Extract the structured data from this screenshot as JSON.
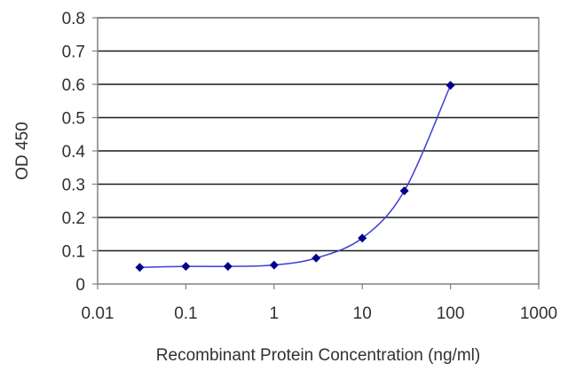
{
  "chart_data": {
    "type": "scatter",
    "title": "",
    "xlabel": "Recombinant Protein Concentration (ng/ml)",
    "ylabel": "OD 450",
    "x_scale": "log",
    "xlim": [
      0.01,
      1000
    ],
    "ylim": [
      0,
      0.8
    ],
    "x_ticks": [
      0.01,
      0.1,
      1,
      10,
      100,
      1000
    ],
    "x_tick_labels": [
      "0.01",
      "0.1",
      "1",
      "10",
      "100",
      "1000"
    ],
    "y_ticks": [
      0,
      0.1,
      0.2,
      0.3,
      0.4,
      0.5,
      0.6,
      0.7,
      0.8
    ],
    "y_tick_labels": [
      "0",
      "0.1",
      "0.2",
      "0.3",
      "0.4",
      "0.5",
      "0.6",
      "0.7",
      "0.8"
    ],
    "grid": "horizontal",
    "legend": "none",
    "series": [
      {
        "x": [
          0.03,
          0.1,
          0.3,
          1,
          3,
          10,
          30,
          100
        ],
        "y": [
          0.05,
          0.053,
          0.053,
          0.057,
          0.078,
          0.138,
          0.28,
          0.597
        ],
        "marker": "diamond",
        "color": "#00008b",
        "line_color": "#3d3dd6",
        "fit": "smooth-curve"
      }
    ]
  }
}
